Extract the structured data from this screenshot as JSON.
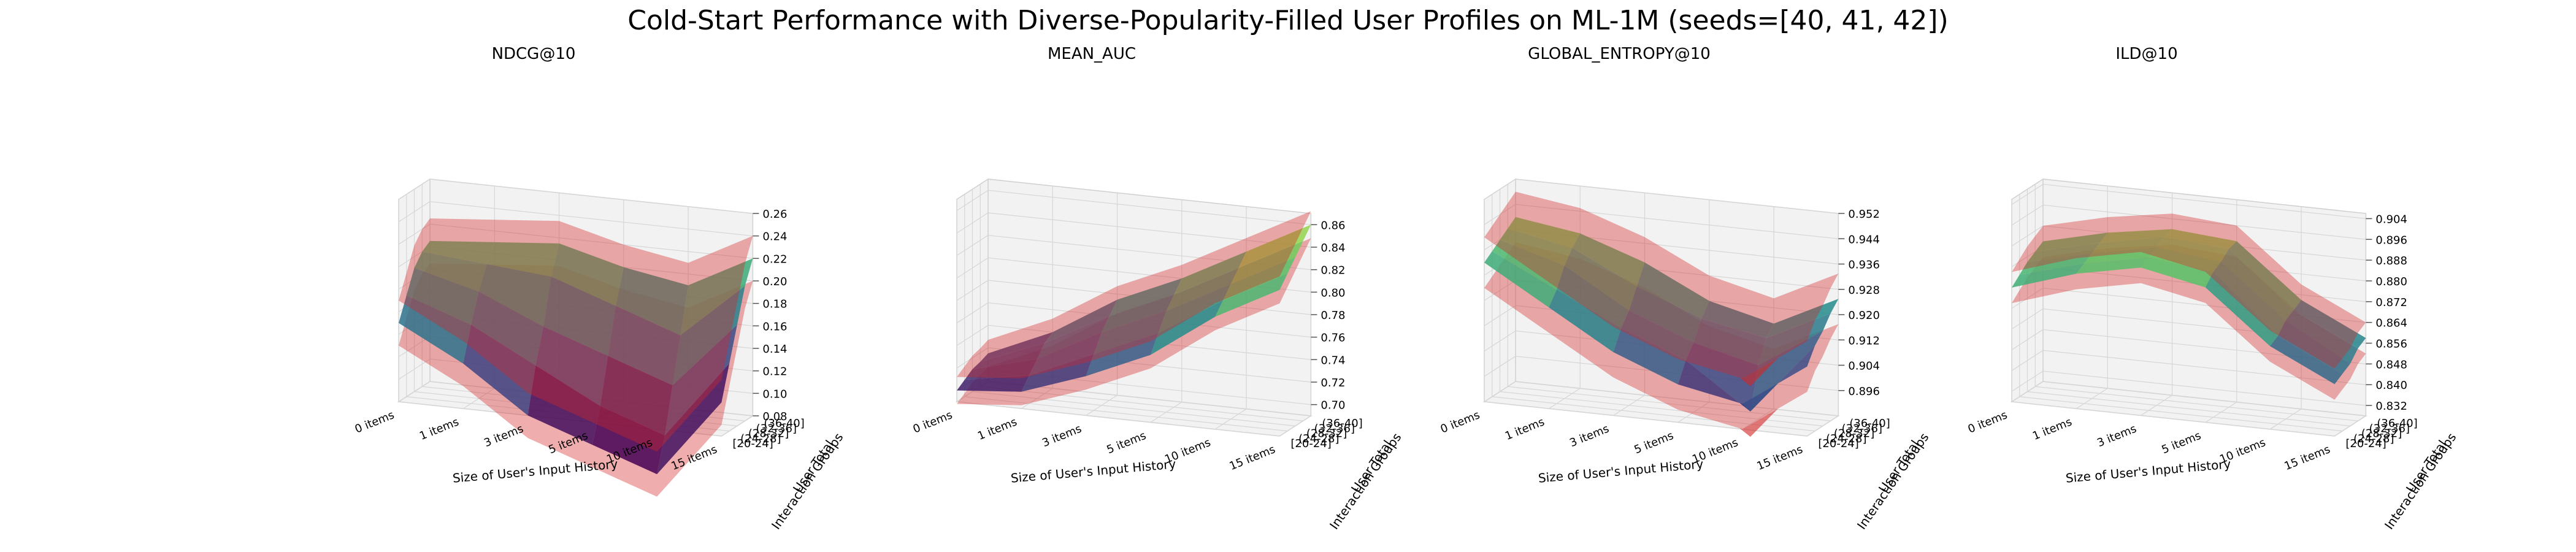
{
  "figure": {
    "title": "Cold-Start Performance with Diverse-Popularity-Filled User Profiles on ML-1M (seeds=[40, 41, 42])"
  },
  "chart_data": [
    {
      "type": "surface3d",
      "title": "NDCG@10",
      "xlabel": "Size of User's Input History",
      "ylabel": "User Total\nInteraction Groups",
      "x_categories": [
        "0 items",
        "1 items",
        "3 items",
        "5 items",
        "10 items",
        "15 items"
      ],
      "y_categories": [
        "[20-24]",
        "(24-28]",
        "(28-32]",
        "(32-36]",
        "(36-40]"
      ],
      "z_ticks": [
        "0.08",
        "0.10",
        "0.12",
        "0.14",
        "0.16",
        "0.18",
        "0.20",
        "0.22",
        "0.24",
        "0.26"
      ],
      "zlim": [
        0.08,
        0.26
      ],
      "colormap": "viridis",
      "band_color": "#d62728",
      "z_mean": [
        [
          0.15,
          0.12,
          0.08,
          0.06,
          0.04,
          0.11
        ],
        [
          0.17,
          0.15,
          0.12,
          0.09,
          0.07,
          0.14
        ],
        [
          0.19,
          0.175,
          0.15,
          0.13,
          0.11,
          0.17
        ],
        [
          0.2,
          0.195,
          0.19,
          0.17,
          0.15,
          0.2
        ],
        [
          0.205,
          0.21,
          0.215,
          0.2,
          0.19,
          0.22
        ]
      ],
      "band_halfwidth": 0.02
    },
    {
      "type": "surface3d",
      "title": "MEAN_AUC",
      "xlabel": "Size of User's Input History",
      "ylabel": "User Total\nInteraction Groups",
      "x_categories": [
        "0 items",
        "1 items",
        "3 items",
        "5 items",
        "10 items",
        "15 items"
      ],
      "y_categories": [
        "[20-24]",
        "(24-28]",
        "(28-32]",
        "(32-36]",
        "(36-40]"
      ],
      "z_ticks": [
        "0.70",
        "0.72",
        "0.74",
        "0.76",
        "0.78",
        "0.80",
        "0.82",
        "0.84",
        "0.86"
      ],
      "zlim": [
        0.69,
        0.87
      ],
      "colormap": "viridis",
      "band_color": "#d62728",
      "z_mean": [
        [
          0.7,
          0.705,
          0.725,
          0.75,
          0.79,
          0.82
        ],
        [
          0.705,
          0.715,
          0.74,
          0.765,
          0.8,
          0.83
        ],
        [
          0.71,
          0.725,
          0.755,
          0.78,
          0.81,
          0.84
        ],
        [
          0.712,
          0.735,
          0.765,
          0.79,
          0.82,
          0.85
        ],
        [
          0.715,
          0.74,
          0.775,
          0.8,
          0.83,
          0.86
        ]
      ],
      "band_halfwidth": 0.012
    },
    {
      "type": "surface3d",
      "title": "GLOBAL_ENTROPY@10",
      "xlabel": "Size of User's Input History",
      "ylabel": "User Total\nInteraction Groups",
      "x_categories": [
        "0 items",
        "1 items",
        "3 items",
        "5 items",
        "10 items",
        "15 items"
      ],
      "y_categories": [
        "[20-24]",
        "(24-28]",
        "(28-32]",
        "(32-36]",
        "(36-40]"
      ],
      "z_ticks": [
        "0.896",
        "0.904",
        "0.912",
        "0.920",
        "0.928",
        "0.936",
        "0.944",
        "0.952"
      ],
      "zlim": [
        0.888,
        0.952
      ],
      "colormap": "viridis",
      "band_color": "#d62728",
      "z_mean": [
        [
          0.932,
          0.92,
          0.908,
          0.9,
          0.896,
          0.91
        ],
        [
          0.934,
          0.924,
          0.914,
          0.906,
          0.892,
          0.915
        ],
        [
          0.936,
          0.93,
          0.918,
          0.91,
          0.905,
          0.918
        ],
        [
          0.938,
          0.934,
          0.924,
          0.916,
          0.912,
          0.922
        ],
        [
          0.94,
          0.937,
          0.93,
          0.92,
          0.915,
          0.925
        ]
      ],
      "band_halfwidth": 0.008
    },
    {
      "type": "surface3d",
      "title": "ILD@10",
      "xlabel": "Size of User's Input History",
      "ylabel": "User Total\nInteraction Groups",
      "x_categories": [
        "0 items",
        "1 items",
        "3 items",
        "5 items",
        "10 items",
        "15 items"
      ],
      "y_categories": [
        "[20-24]",
        "(24-28]",
        "(28-32]",
        "(32-36]",
        "(36-40]"
      ],
      "z_ticks": [
        "0.832",
        "0.840",
        "0.848",
        "0.856",
        "0.864",
        "0.872",
        "0.880",
        "0.888",
        "0.896",
        "0.904"
      ],
      "zlim": [
        0.828,
        0.906
      ],
      "colormap": "viridis",
      "band_color": "#d62728",
      "z_mean": [
        [
          0.872,
          0.88,
          0.885,
          0.88,
          0.86,
          0.848
        ],
        [
          0.875,
          0.882,
          0.887,
          0.884,
          0.862,
          0.85
        ],
        [
          0.878,
          0.884,
          0.889,
          0.886,
          0.866,
          0.852
        ],
        [
          0.88,
          0.886,
          0.891,
          0.889,
          0.868,
          0.856
        ],
        [
          0.882,
          0.888,
          0.892,
          0.89,
          0.87,
          0.858
        ]
      ],
      "band_halfwidth": 0.006
    }
  ]
}
